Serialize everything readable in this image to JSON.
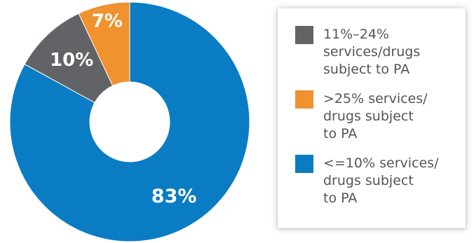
{
  "chart_data": {
    "type": "pie",
    "variant": "donut",
    "slices": [
      {
        "label": "<=10% services/\ndrugs subject\nto PA",
        "value": 83,
        "display": "83%",
        "color": "#0a7cc4"
      },
      {
        "label": "11%–24%\nservices/drugs\nsubject to PA",
        "value": 10,
        "display": "10%",
        "color": "#626366"
      },
      {
        "label": ">25% services/\ndrugs subject\nto PA",
        "value": 7,
        "display": "7%",
        "color": "#f0922e"
      }
    ],
    "legend": [
      "11%–24%\nservices/drugs\nsubject to PA",
      ">25% services/\ndrugs subject\nto PA",
      "<=10% services/\ndrugs subject\nto PA"
    ],
    "legend_colors": [
      "#626366",
      "#f0922e",
      "#0a7cc4"
    ],
    "legend_placement": "right"
  }
}
